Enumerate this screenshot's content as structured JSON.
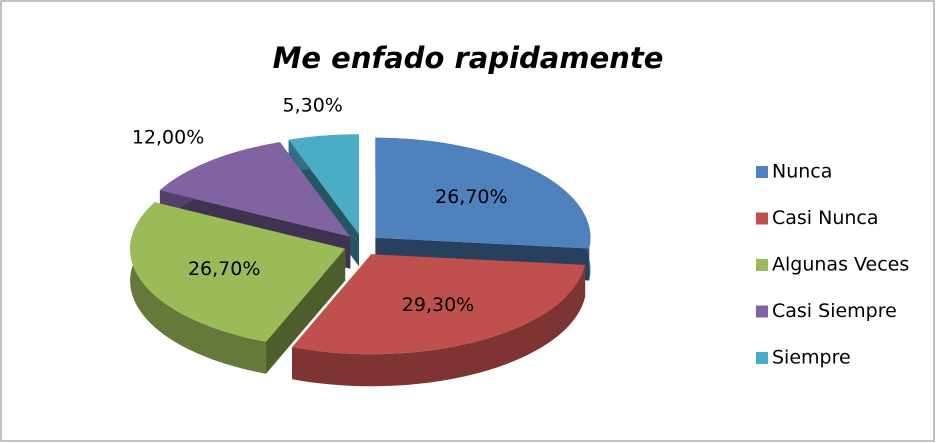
{
  "chart_data": {
    "type": "pie",
    "title": "Me enfado rapidamente",
    "categories": [
      "Nunca",
      "Casi Nunca",
      "Algunas Veces",
      "Casi Siempre",
      "Siempre"
    ],
    "values": [
      26.7,
      29.3,
      26.7,
      12.0,
      5.3
    ],
    "value_labels": [
      "26,70%",
      "29,30%",
      "26,70%",
      "12,00%",
      "5,30%"
    ],
    "colors": [
      "#4f81bd",
      "#c0504d",
      "#9bbb59",
      "#8064a2",
      "#4bacc6"
    ],
    "legend": "right"
  }
}
